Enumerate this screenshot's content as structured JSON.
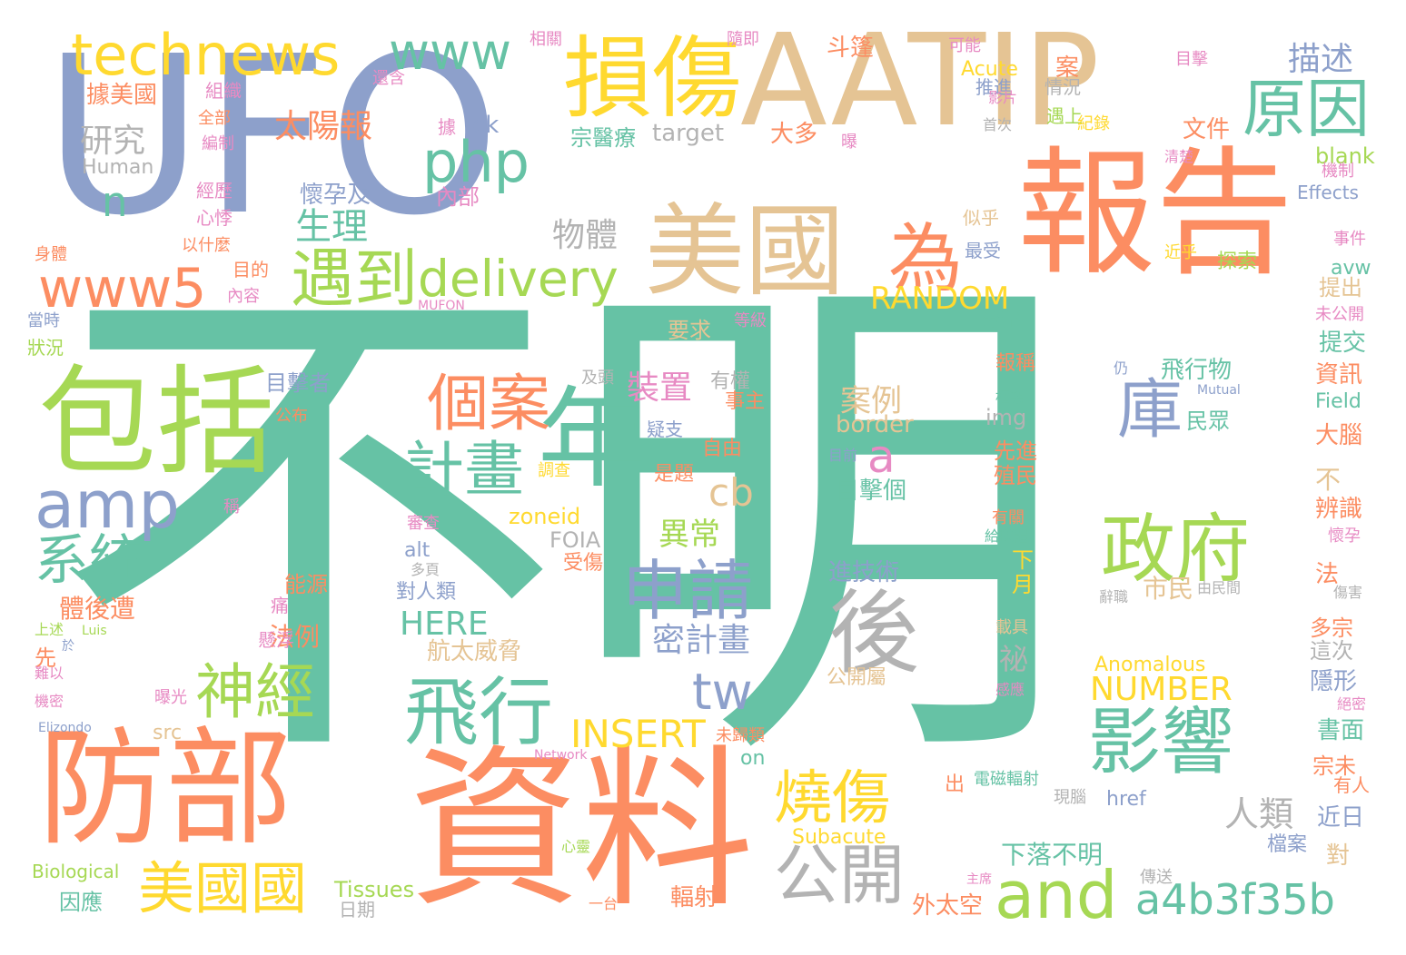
{
  "colors": {
    "teal": "#66c2a5",
    "orange": "#fc8d62",
    "slate": "#8da0cb",
    "pink": "#e78ac3",
    "lime": "#a6d854",
    "yellow": "#ffd92f",
    "tan": "#e5c494",
    "gray": "#b3b3b3",
    "background": "#ffffff"
  },
  "words": [
    {
      "text": "不明",
      "color": "teal"
    },
    {
      "text": "UFO",
      "color": "slate"
    },
    {
      "text": "AATIP",
      "color": "tan"
    },
    {
      "text": "報告",
      "color": "orange"
    },
    {
      "text": "資料",
      "color": "orange"
    },
    {
      "text": "防部",
      "color": "orange"
    },
    {
      "text": "包括",
      "color": "lime"
    },
    {
      "text": "美國",
      "color": "tan"
    },
    {
      "text": "損傷",
      "color": "yellow"
    },
    {
      "text": "年",
      "color": "teal"
    },
    {
      "text": "technews",
      "color": "yellow"
    },
    {
      "text": "www",
      "color": "teal"
    },
    {
      "text": "php",
      "color": "teal"
    },
    {
      "text": "amp",
      "color": "slate"
    },
    {
      "text": "and",
      "color": "lime"
    },
    {
      "text": "www5",
      "color": "orange"
    },
    {
      "text": "delivery",
      "color": "lime"
    },
    {
      "text": "遇到",
      "color": "lime"
    },
    {
      "text": "為",
      "color": "orange"
    },
    {
      "text": "原因",
      "color": "teal"
    },
    {
      "text": "影響",
      "color": "teal"
    },
    {
      "text": "政府",
      "color": "lime"
    },
    {
      "text": "飛行",
      "color": "teal"
    },
    {
      "text": "申請",
      "color": "slate"
    },
    {
      "text": "後",
      "color": "gray"
    },
    {
      "text": "系統",
      "color": "teal"
    },
    {
      "text": "神經",
      "color": "lime"
    },
    {
      "text": "個案",
      "color": "orange"
    },
    {
      "text": "計畫",
      "color": "teal"
    },
    {
      "text": "燒傷",
      "color": "yellow"
    },
    {
      "text": "公開",
      "color": "gray"
    },
    {
      "text": "美國國",
      "color": "yellow"
    },
    {
      "text": "a4b3f35b",
      "color": "teal"
    },
    {
      "text": "庫",
      "color": "slate"
    },
    {
      "text": "tw",
      "color": "slate"
    },
    {
      "text": "n",
      "color": "teal"
    },
    {
      "text": "INSERT",
      "color": "yellow"
    },
    {
      "text": "a",
      "color": "pink"
    },
    {
      "text": "cb",
      "color": "tan"
    },
    {
      "text": "太陽報",
      "color": "orange"
    },
    {
      "text": "研究",
      "color": "gray"
    },
    {
      "text": "物體",
      "color": "gray"
    },
    {
      "text": "生理",
      "color": "teal"
    },
    {
      "text": "描述",
      "color": "slate"
    },
    {
      "text": "RANDOM",
      "color": "yellow"
    },
    {
      "text": "NUMBER",
      "color": "yellow"
    },
    {
      "text": "HERE",
      "color": "teal"
    },
    {
      "text": "異常",
      "color": "lime"
    },
    {
      "text": "密計畫",
      "color": "slate"
    },
    {
      "text": "人類",
      "color": "gray"
    },
    {
      "text": "裝置",
      "color": "pink"
    },
    {
      "text": "案例",
      "color": "tan"
    },
    {
      "text": "目擊個",
      "color": "teal"
    },
    {
      "text": "進技術",
      "color": "slate"
    },
    {
      "text": "飛行物",
      "color": "teal"
    },
    {
      "text": "文件",
      "color": "orange"
    },
    {
      "text": "懷孕及",
      "color": "slate"
    },
    {
      "text": "要求",
      "color": "tan"
    },
    {
      "text": "目擊者",
      "color": "slate"
    },
    {
      "text": "法例",
      "color": "orange"
    },
    {
      "text": "能源",
      "color": "orange"
    },
    {
      "text": "體後遭",
      "color": "orange"
    },
    {
      "text": "因應",
      "color": "teal"
    },
    {
      "text": "航太威脅",
      "color": "tan"
    },
    {
      "text": "下落不明",
      "color": "teal"
    },
    {
      "text": "市民",
      "color": "tan"
    },
    {
      "text": "border",
      "color": "tan"
    },
    {
      "text": "Anomalous",
      "color": "yellow"
    },
    {
      "text": "target",
      "color": "gray"
    },
    {
      "text": "Human",
      "color": "gray"
    },
    {
      "text": "blank",
      "color": "lime"
    },
    {
      "text": "Effects",
      "color": "slate"
    },
    {
      "text": "Biological",
      "color": "lime"
    },
    {
      "text": "Tissues",
      "color": "lime"
    },
    {
      "text": "Subacute",
      "color": "yellow"
    },
    {
      "text": "zoneid",
      "color": "yellow"
    },
    {
      "text": "FOIA",
      "color": "gray"
    },
    {
      "text": "MUFON",
      "color": "pink"
    },
    {
      "text": "Mutual",
      "color": "slate"
    },
    {
      "text": "Field",
      "color": "teal"
    },
    {
      "text": "Acute",
      "color": "yellow"
    },
    {
      "text": "Network",
      "color": "pink"
    },
    {
      "text": "Elizondo",
      "color": "slate"
    },
    {
      "text": "Luis",
      "color": "lime"
    },
    {
      "text": "href",
      "color": "slate"
    },
    {
      "text": "img",
      "color": "gray"
    },
    {
      "text": "alt",
      "color": "slate"
    },
    {
      "text": "src",
      "color": "tan"
    },
    {
      "text": "on",
      "color": "teal"
    },
    {
      "text": "ck",
      "color": "slate"
    },
    {
      "text": "avw",
      "color": "teal"
    },
    {
      "text": "據美國",
      "color": "orange"
    },
    {
      "text": "斗篷",
      "color": "orange"
    },
    {
      "text": "大多",
      "color": "orange"
    },
    {
      "text": "宗醫療",
      "color": "teal"
    },
    {
      "text": "內部",
      "color": "pink"
    },
    {
      "text": "目的",
      "color": "orange"
    },
    {
      "text": "推進",
      "color": "slate"
    },
    {
      "text": "情況",
      "color": "gray"
    },
    {
      "text": "遇上",
      "color": "lime"
    },
    {
      "text": "紀錄",
      "color": "yellow"
    },
    {
      "text": "首次",
      "color": "gray"
    },
    {
      "text": "似乎",
      "color": "tan"
    },
    {
      "text": "最受",
      "color": "slate"
    },
    {
      "text": "探索",
      "color": "lime"
    },
    {
      "text": "提出",
      "color": "tan"
    },
    {
      "text": "提交",
      "color": "teal"
    },
    {
      "text": "資訊",
      "color": "orange"
    },
    {
      "text": "大腦",
      "color": "orange"
    },
    {
      "text": "辨識",
      "color": "orange"
    },
    {
      "text": "報稱",
      "color": "orange"
    },
    {
      "text": "先進",
      "color": "orange"
    },
    {
      "text": "殖民",
      "color": "orange"
    },
    {
      "text": "有權",
      "color": "gray"
    },
    {
      "text": "事主",
      "color": "orange"
    },
    {
      "text": "自由",
      "color": "orange"
    },
    {
      "text": "是題",
      "color": "orange"
    },
    {
      "text": "民眾",
      "color": "teal"
    },
    {
      "text": "分部",
      "color": "teal"
    },
    {
      "text": "多宗",
      "color": "orange"
    },
    {
      "text": "這次",
      "color": "gray"
    },
    {
      "text": "隱形",
      "color": "slate"
    },
    {
      "text": "書面",
      "color": "teal"
    },
    {
      "text": "近日",
      "color": "slate"
    },
    {
      "text": "宗未",
      "color": "orange"
    },
    {
      "text": "有人",
      "color": "orange"
    },
    {
      "text": "輻射",
      "color": "orange"
    },
    {
      "text": "外太空",
      "color": "orange"
    },
    {
      "text": "檔案",
      "color": "slate"
    },
    {
      "text": "對人類",
      "color": "slate"
    },
    {
      "text": "日期",
      "color": "gray"
    },
    {
      "text": "電磁輻射",
      "color": "teal"
    },
    {
      "text": "公開屬",
      "color": "tan"
    },
    {
      "text": "公布",
      "color": "orange"
    },
    {
      "text": "狀況",
      "color": "lime"
    },
    {
      "text": "身體",
      "color": "orange"
    },
    {
      "text": "以什麼",
      "color": "orange"
    },
    {
      "text": "全部",
      "color": "orange"
    },
    {
      "text": "當時",
      "color": "slate"
    },
    {
      "text": "先",
      "color": "orange"
    },
    {
      "text": "於",
      "color": "slate"
    },
    {
      "text": "上述",
      "color": "lime"
    },
    {
      "text": "受傷",
      "color": "orange"
    },
    {
      "text": "多頁",
      "color": "gray"
    },
    {
      "text": "一台",
      "color": "orange"
    },
    {
      "text": "心靈",
      "color": "lime"
    },
    {
      "text": "主席",
      "color": "pink"
    },
    {
      "text": "傳送",
      "color": "gray"
    },
    {
      "text": "現腦",
      "color": "gray"
    },
    {
      "text": "出",
      "color": "orange"
    },
    {
      "text": "對",
      "color": "tan"
    },
    {
      "text": "不",
      "color": "tan"
    },
    {
      "text": "法",
      "color": "orange"
    },
    {
      "text": "案",
      "color": "orange"
    },
    {
      "text": "祕",
      "color": "gray"
    },
    {
      "text": "月",
      "color": "yellow"
    },
    {
      "text": "下",
      "color": "yellow"
    },
    {
      "text": "可能",
      "color": "pink"
    },
    {
      "text": "相關",
      "color": "pink"
    },
    {
      "text": "隨即",
      "color": "pink"
    },
    {
      "text": "還含",
      "color": "pink"
    },
    {
      "text": "目擊",
      "color": "pink"
    },
    {
      "text": "影片",
      "color": "pink"
    },
    {
      "text": "清楚",
      "color": "pink"
    },
    {
      "text": "機制",
      "color": "pink"
    },
    {
      "text": "事件",
      "color": "pink"
    },
    {
      "text": "未公開",
      "color": "pink"
    },
    {
      "text": "懷孕",
      "color": "pink"
    },
    {
      "text": "傷害",
      "color": "gray"
    },
    {
      "text": "絕密",
      "color": "pink"
    },
    {
      "text": "由民間",
      "color": "gray"
    },
    {
      "text": "辭職",
      "color": "gray"
    },
    {
      "text": "仍",
      "color": "slate"
    },
    {
      "text": "目前",
      "color": "slate"
    },
    {
      "text": "等級",
      "color": "pink"
    },
    {
      "text": "稱",
      "color": "pink"
    },
    {
      "text": "審查",
      "color": "pink"
    },
    {
      "text": "調查",
      "color": "yellow"
    },
    {
      "text": "感應",
      "color": "pink"
    },
    {
      "text": "載具",
      "color": "tan"
    },
    {
      "text": "未歸類",
      "color": "orange"
    },
    {
      "text": "曝光",
      "color": "pink"
    },
    {
      "text": "機密",
      "color": "pink"
    },
    {
      "text": "難以",
      "color": "pink"
    },
    {
      "text": "懸浮",
      "color": "pink"
    },
    {
      "text": "痛",
      "color": "pink"
    },
    {
      "text": "據",
      "color": "pink"
    },
    {
      "text": "曝",
      "color": "pink"
    },
    {
      "text": "組織",
      "color": "pink"
    },
    {
      "text": "心悸",
      "color": "pink"
    },
    {
      "text": "經歷",
      "color": "pink"
    },
    {
      "text": "內容",
      "color": "pink"
    },
    {
      "text": "編制",
      "color": "pink"
    },
    {
      "text": "及頭",
      "color": "gray"
    },
    {
      "text": "疑支",
      "color": "slate"
    },
    {
      "text": "給採體",
      "color": "teal"
    },
    {
      "text": "有關",
      "color": "orange"
    },
    {
      "text": "框架",
      "color": "teal"
    },
    {
      "text": "近乎",
      "color": "yellow"
    }
  ]
}
